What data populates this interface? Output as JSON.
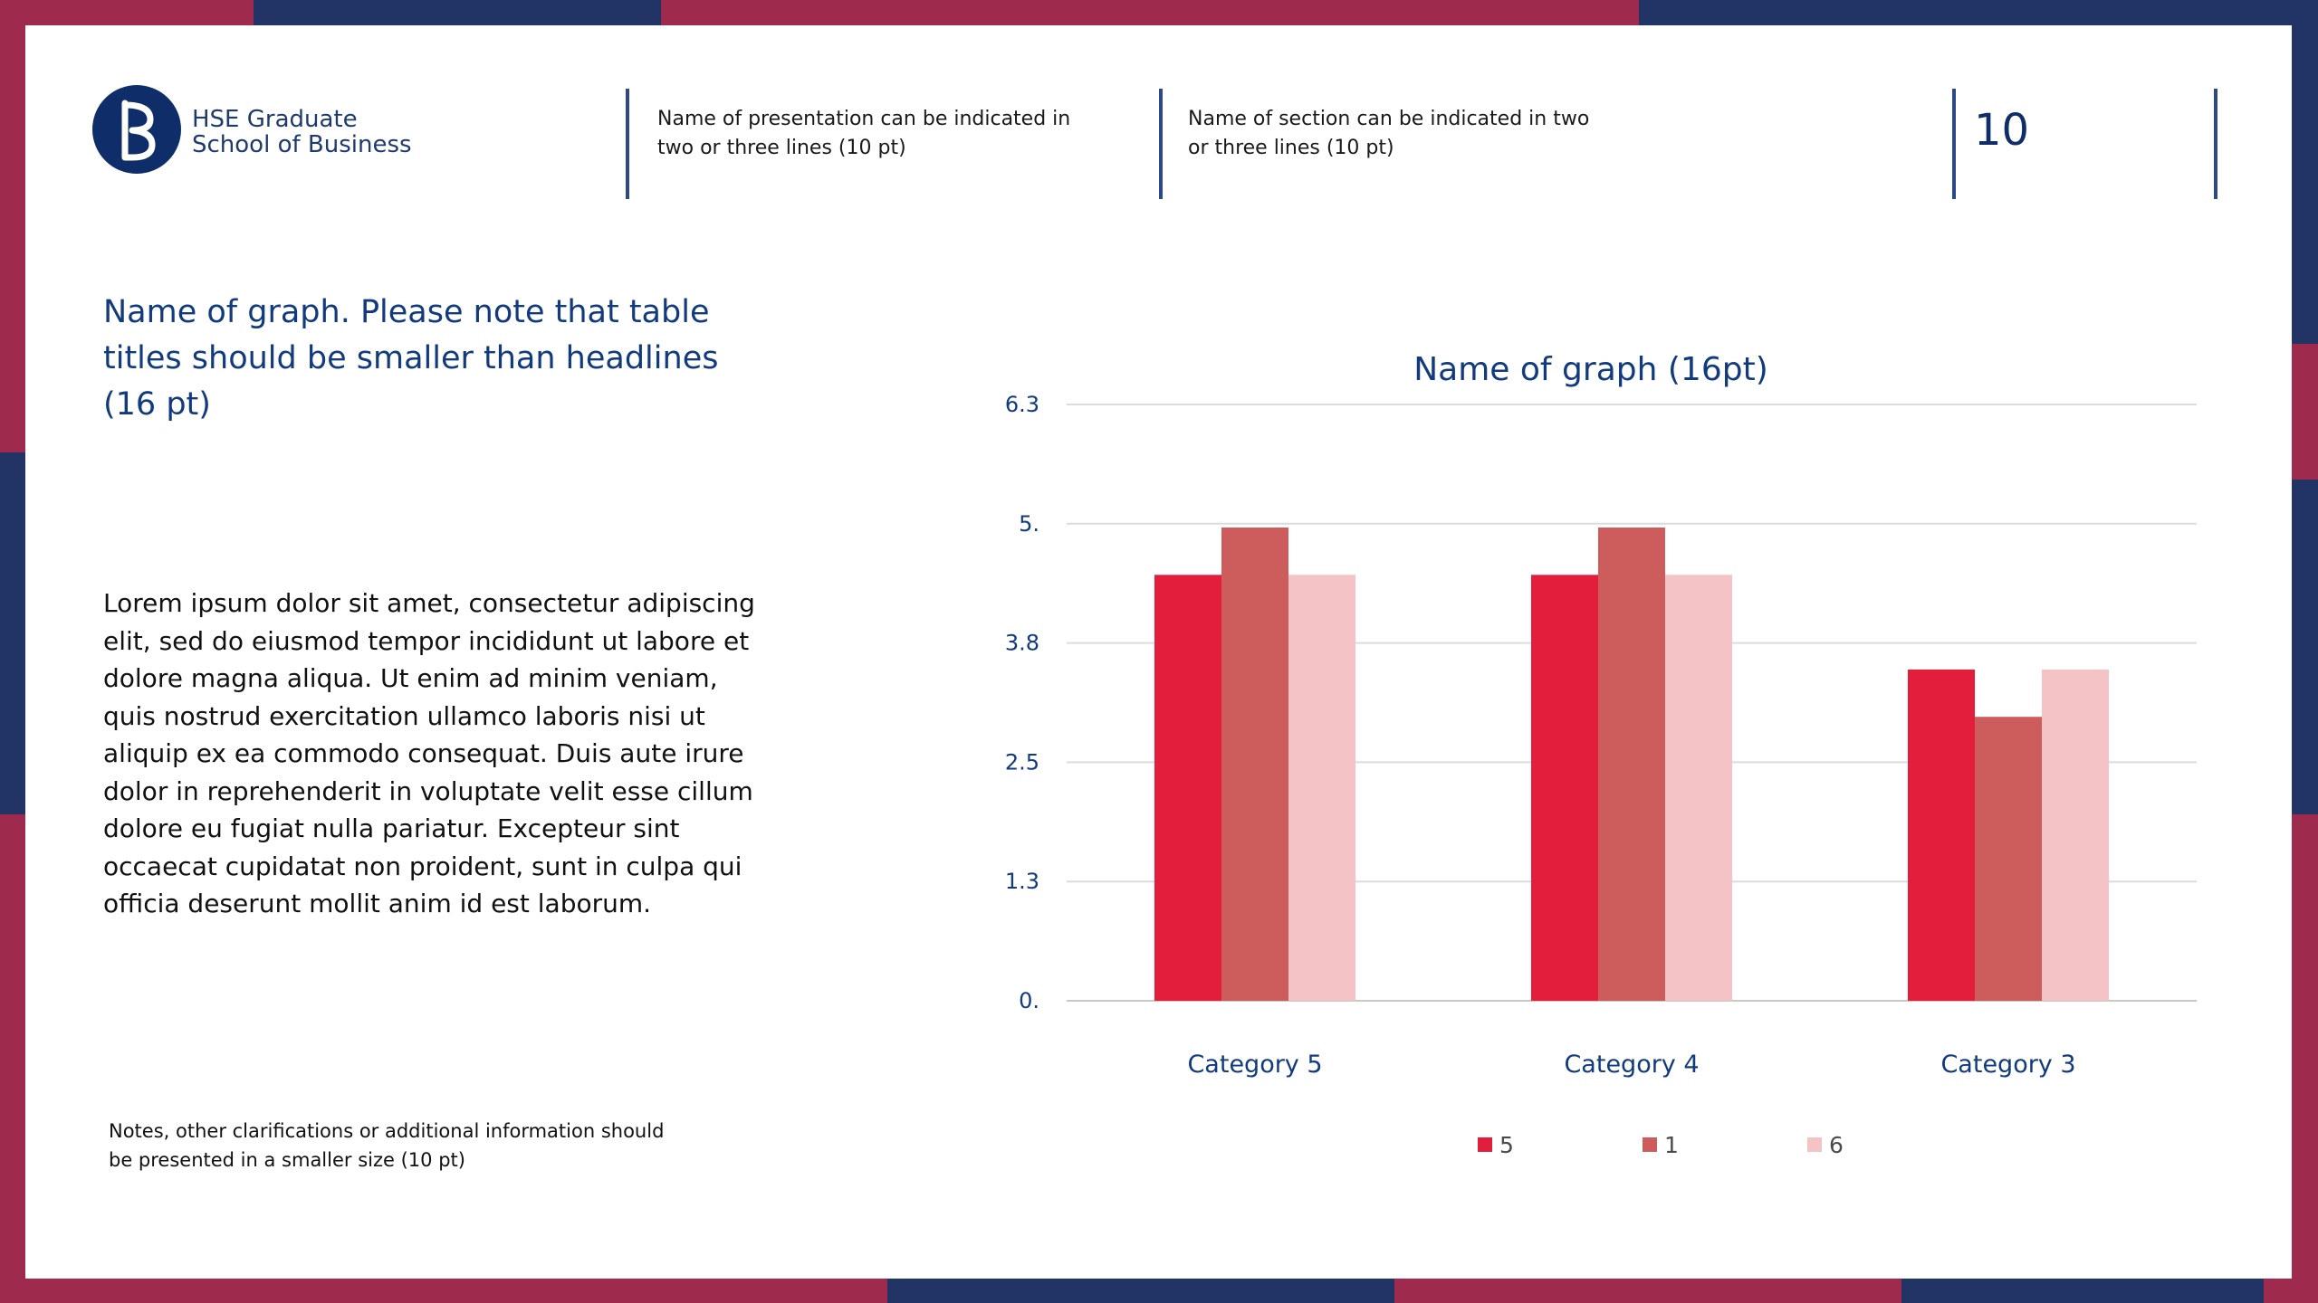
{
  "header": {
    "logo_line1": "HSE Graduate",
    "logo_line2": "School of Business",
    "presentation_name": "Name of presentation can be indicated in\ntwo or three lines (10 pt)",
    "section_name": "Name of section can be indicated in two\nor three lines (10 pt)",
    "page_number": "10"
  },
  "left": {
    "headline": "Name of graph. Please note that table\ntitles should be smaller than headlines\n(16 pt)",
    "body": "Lorem ipsum dolor sit amet, consectetur adipiscing\nelit, sed do eiusmod tempor incididunt ut labore et\ndolore magna aliqua. Ut enim ad minim veniam,\nquis nostrud exercitation ullamco laboris nisi ut\naliquip ex ea commodo consequat. Duis aute irure\ndolor in reprehenderit in voluptate velit esse cillum\ndolore eu fugiat nulla pariatur. Excepteur sint\noccaecat cupidatat non proident, sunt in culpa qui\nofficia deserunt mollit anim id est laborum.",
    "notes": "Notes, other clarifications or additional information should\nbe presented in a smaller size (10 pt)"
  },
  "colors": {
    "navy": "#213465",
    "crimson": "#9e2a4e",
    "series": [
      "#e31e3c",
      "#cd5c5c",
      "#f3c3c6"
    ]
  },
  "chart_data": {
    "type": "bar",
    "title": "Name of graph (16pt)",
    "categories": [
      "Category 5",
      "Category 4",
      "Category 3"
    ],
    "series": [
      {
        "name": "5",
        "values": [
          4.5,
          4.5,
          3.5
        ]
      },
      {
        "name": "1",
        "values": [
          5.0,
          5.0,
          3.0
        ]
      },
      {
        "name": "6",
        "values": [
          4.5,
          4.5,
          3.5
        ]
      }
    ],
    "yticks": [
      "6.3",
      "5.",
      "3.8",
      "2.5",
      "1.3",
      "0."
    ],
    "ylim": [
      0,
      6.3
    ],
    "grid": true,
    "legend": "bottom"
  }
}
